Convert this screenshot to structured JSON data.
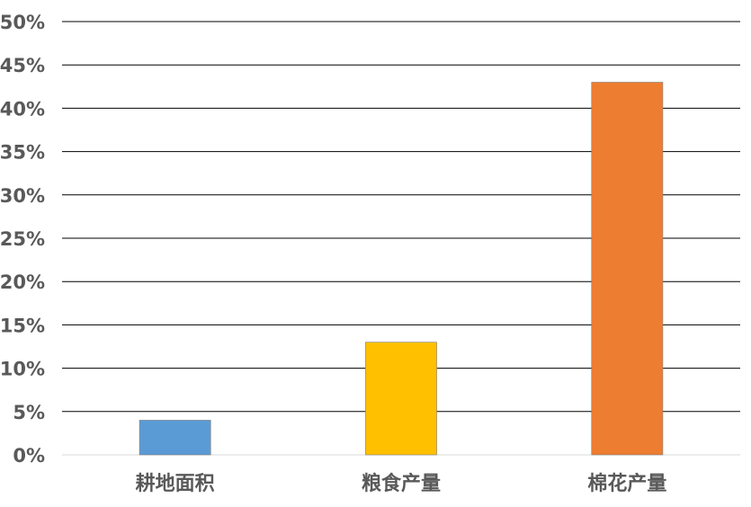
{
  "chart_data": {
    "type": "bar",
    "title": "",
    "xlabel": "",
    "ylabel": "",
    "categories": [
      "耕地面积",
      "粮食产量",
      "棉花产量"
    ],
    "values": [
      4,
      13,
      43
    ],
    "colors": [
      "#5B9BD5",
      "#FFC000",
      "#ED7D31"
    ],
    "ylim": [
      0,
      50
    ],
    "yticks": [
      0,
      5,
      10,
      15,
      20,
      25,
      30,
      35,
      40,
      45,
      50
    ],
    "ytick_suffix": "%",
    "grid": true,
    "legend": "none"
  }
}
